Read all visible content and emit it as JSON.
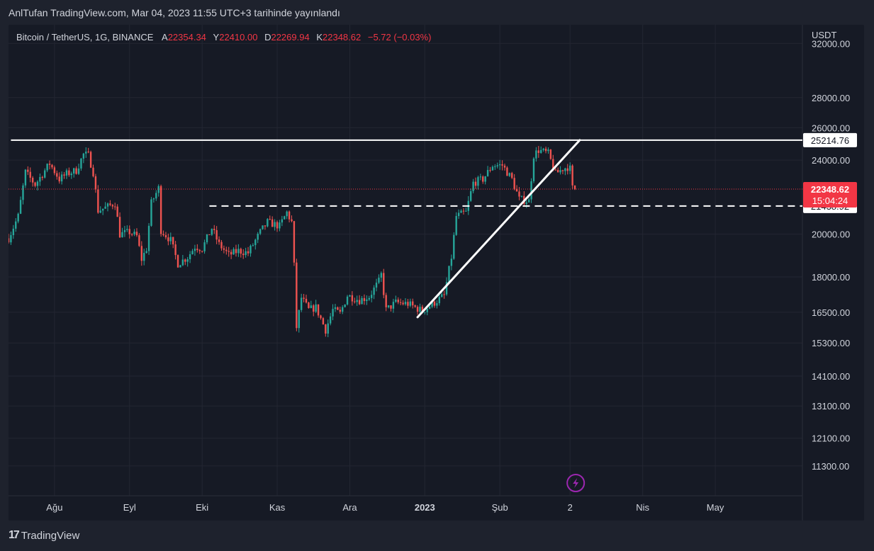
{
  "publisher": "AnlTufan TradingView.com, Mar 04, 2023 11:55 UTC+3 tarihinde yayınlandı",
  "brand": {
    "logo_glyph": "17",
    "name": "TradingView"
  },
  "legend": {
    "symbol": "Bitcoin / TetherUS, 1G, BINANCE",
    "open_label": "A",
    "open": "22354.34",
    "high_label": "Y",
    "high": "22410.00",
    "low_label": "D",
    "low": "22269.94",
    "close_label": "K",
    "close": "22348.62",
    "change": "−5.72 (−0.03%)"
  },
  "colors": {
    "background": "#161a25",
    "up": "#26a69a",
    "down": "#ef5350",
    "text": "#d1d4dc",
    "grid": "#232632",
    "price_tag": "#f23645"
  },
  "chart_data": {
    "type": "candlestick",
    "scale": "log",
    "currency_label": "USDT",
    "y_ticks": [
      32000,
      28000,
      26000,
      24000,
      20000,
      18000,
      16500,
      15300,
      14100,
      13100,
      12100,
      11300
    ],
    "y_tick_labels": [
      "32000.00",
      "28000.00",
      "26000.00",
      "24000.00",
      "20000.00",
      "18000.00",
      "16500.00",
      "15300.00",
      "14100.00",
      "13100.00",
      "12100.00",
      "11300.00"
    ],
    "x_ticks": [
      {
        "label": "Ağu",
        "date": "2022-08-01"
      },
      {
        "label": "Eyl",
        "date": "2022-09-01"
      },
      {
        "label": "Eki",
        "date": "2022-10-01"
      },
      {
        "label": "Kas",
        "date": "2022-11-01"
      },
      {
        "label": "Ara",
        "date": "2022-12-01"
      },
      {
        "label": "2023",
        "date": "2023-01-01"
      },
      {
        "label": "Şub",
        "date": "2023-02-01"
      },
      {
        "label": "2",
        "date": "2023-03-02"
      },
      {
        "label": "Nis",
        "date": "2023-04-01"
      },
      {
        "label": "May",
        "date": "2023-05-01"
      }
    ],
    "x_range": [
      "2022-07-13",
      "2023-06-06"
    ],
    "y_range": [
      10500,
      33500
    ],
    "price_path": [
      [
        "2022-07-13",
        19800
      ],
      [
        "2022-07-17",
        20900
      ],
      [
        "2022-07-20",
        23300
      ],
      [
        "2022-07-24",
        22600
      ],
      [
        "2022-07-28",
        23400
      ],
      [
        "2022-07-30",
        23800
      ],
      [
        "2022-08-03",
        22900
      ],
      [
        "2022-08-06",
        23200
      ],
      [
        "2022-08-10",
        23400
      ],
      [
        "2022-08-13",
        24350
      ],
      [
        "2022-08-15",
        24300
      ],
      [
        "2022-08-17",
        23300
      ],
      [
        "2022-08-19",
        21200
      ],
      [
        "2022-08-23",
        21400
      ],
      [
        "2022-08-26",
        21600
      ],
      [
        "2022-08-28",
        20000
      ],
      [
        "2022-09-01",
        20100
      ],
      [
        "2022-09-04",
        19900
      ],
      [
        "2022-09-06",
        18800
      ],
      [
        "2022-09-08",
        19300
      ],
      [
        "2022-09-10",
        21600
      ],
      [
        "2022-09-13",
        22400
      ],
      [
        "2022-09-14",
        20200
      ],
      [
        "2022-09-18",
        19700
      ],
      [
        "2022-09-21",
        18600
      ],
      [
        "2022-09-25",
        18900
      ],
      [
        "2022-09-28",
        19400
      ],
      [
        "2022-10-01",
        19300
      ],
      [
        "2022-10-05",
        20300
      ],
      [
        "2022-10-08",
        19500
      ],
      [
        "2022-10-12",
        19000
      ],
      [
        "2022-10-16",
        19200
      ],
      [
        "2022-10-20",
        19100
      ],
      [
        "2022-10-25",
        20100
      ],
      [
        "2022-10-28",
        20600
      ],
      [
        "2022-11-02",
        20400
      ],
      [
        "2022-11-05",
        21100
      ],
      [
        "2022-11-07",
        20600
      ],
      [
        "2022-11-08",
        18500
      ],
      [
        "2022-11-09",
        15900
      ],
      [
        "2022-11-11",
        17100
      ],
      [
        "2022-11-14",
        16600
      ],
      [
        "2022-11-17",
        16700
      ],
      [
        "2022-11-21",
        15800
      ],
      [
        "2022-11-24",
        16600
      ],
      [
        "2022-11-27",
        16450
      ],
      [
        "2022-11-30",
        17200
      ],
      [
        "2022-12-05",
        17000
      ],
      [
        "2022-12-09",
        17150
      ],
      [
        "2022-12-13",
        17800
      ],
      [
        "2022-12-14",
        18100
      ],
      [
        "2022-12-16",
        16600
      ],
      [
        "2022-12-20",
        16900
      ],
      [
        "2022-12-25",
        16850
      ],
      [
        "2022-12-31",
        16550
      ],
      [
        "2023-01-05",
        16900
      ],
      [
        "2023-01-09",
        17200
      ],
      [
        "2023-01-12",
        18900
      ],
      [
        "2023-01-14",
        20900
      ],
      [
        "2023-01-18",
        21100
      ],
      [
        "2023-01-21",
        22700
      ],
      [
        "2023-01-25",
        22900
      ],
      [
        "2023-01-29",
        23700
      ],
      [
        "2023-02-02",
        23700
      ],
      [
        "2023-02-06",
        22900
      ],
      [
        "2023-02-09",
        21800
      ],
      [
        "2023-02-13",
        21700
      ],
      [
        "2023-02-15",
        24300
      ],
      [
        "2023-02-17",
        24600
      ],
      [
        "2023-02-21",
        24400
      ],
      [
        "2023-02-24",
        23200
      ],
      [
        "2023-02-27",
        23500
      ],
      [
        "2023-03-01",
        23600
      ],
      [
        "2023-03-02",
        23500
      ],
      [
        "2023-03-03",
        22400
      ],
      [
        "2023-03-04",
        22349
      ]
    ],
    "current_price": {
      "value": 22348.62,
      "label": "22348.62",
      "countdown": "15:04:24"
    },
    "horizontal_levels": [
      {
        "value": 25214.76,
        "label": "25214.76",
        "style": "solid",
        "from": "2022-07-14"
      },
      {
        "value": 21438.92,
        "label": "21438.92",
        "style": "dashed",
        "from": "2022-10-04"
      }
    ],
    "trendline": {
      "from": [
        "2022-12-29",
        16300
      ],
      "to": [
        "2023-03-06",
        25214.76
      ]
    }
  }
}
